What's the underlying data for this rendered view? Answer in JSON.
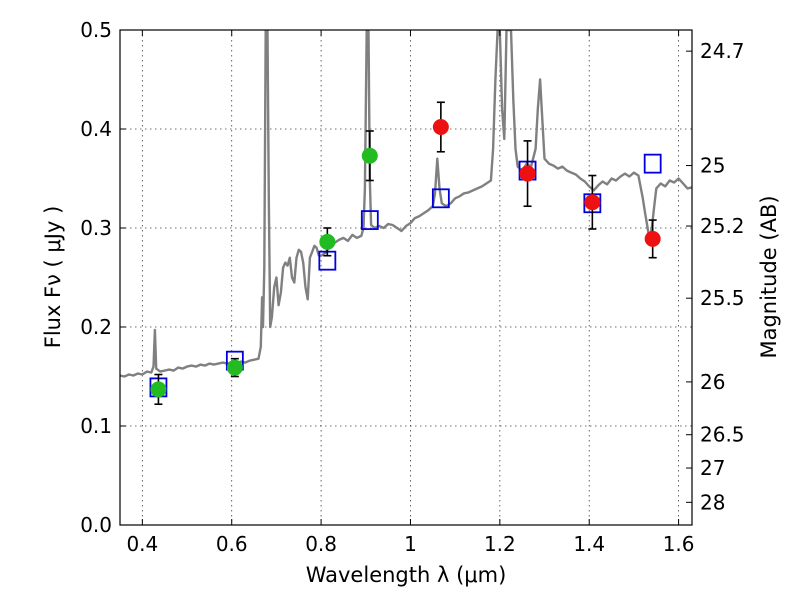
{
  "chart_data": {
    "type": "scatter",
    "xlabel": "Wavelength  λ (μm)",
    "ylabel": "Flux  Fν  ( μJy )",
    "y2label": "Magnitude (AB)",
    "xlim": [
      0.35,
      1.63
    ],
    "ylim": [
      0.0,
      0.5
    ],
    "grid": true,
    "x_ticks": [
      {
        "value": 0.4,
        "label": "0.4"
      },
      {
        "value": 0.6,
        "label": "0.6"
      },
      {
        "value": 0.8,
        "label": "0.8"
      },
      {
        "value": 1.0,
        "label": "1"
      },
      {
        "value": 1.2,
        "label": "1.2"
      },
      {
        "value": 1.4,
        "label": "1.4"
      },
      {
        "value": 1.6,
        "label": "1.6"
      }
    ],
    "y_ticks": [
      {
        "value": 0.0,
        "label": "0.0"
      },
      {
        "value": 0.1,
        "label": "0.1"
      },
      {
        "value": 0.2,
        "label": "0.2"
      },
      {
        "value": 0.3,
        "label": "0.3"
      },
      {
        "value": 0.4,
        "label": "0.4"
      },
      {
        "value": 0.5,
        "label": "0.5"
      }
    ],
    "y2_ticks": [
      {
        "value": 24.7,
        "label": "24.7"
      },
      {
        "value": 25.0,
        "label": "25"
      },
      {
        "value": 25.2,
        "label": "25.2"
      },
      {
        "value": 25.5,
        "label": "25.5"
      },
      {
        "value": 26.0,
        "label": "26"
      },
      {
        "value": 26.5,
        "label": "26.5"
      },
      {
        "value": 27.0,
        "label": "27"
      },
      {
        "value": 28.0,
        "label": "28"
      }
    ],
    "colors": {
      "spectrum": "#808080",
      "optical_points": "#22bb22",
      "nir_points": "#ee1111",
      "model_squares": "#0000dd",
      "error_bars": "#000000"
    },
    "series": [
      {
        "kind": "line",
        "points": [
          [
            0.35,
            0.151
          ],
          [
            0.36,
            0.15
          ],
          [
            0.37,
            0.152
          ],
          [
            0.38,
            0.151
          ],
          [
            0.39,
            0.153
          ],
          [
            0.4,
            0.152
          ],
          [
            0.41,
            0.155
          ],
          [
            0.42,
            0.154
          ],
          [
            0.425,
            0.16
          ],
          [
            0.428,
            0.197
          ],
          [
            0.431,
            0.158
          ],
          [
            0.44,
            0.155
          ],
          [
            0.45,
            0.156
          ],
          [
            0.46,
            0.157
          ],
          [
            0.47,
            0.156
          ],
          [
            0.48,
            0.159
          ],
          [
            0.49,
            0.158
          ],
          [
            0.5,
            0.16
          ],
          [
            0.51,
            0.161
          ],
          [
            0.52,
            0.16
          ],
          [
            0.53,
            0.162
          ],
          [
            0.54,
            0.161
          ],
          [
            0.55,
            0.163
          ],
          [
            0.56,
            0.162
          ],
          [
            0.57,
            0.163
          ],
          [
            0.58,
            0.164
          ],
          [
            0.59,
            0.163
          ],
          [
            0.6,
            0.164
          ],
          [
            0.61,
            0.163
          ],
          [
            0.62,
            0.165
          ],
          [
            0.63,
            0.164
          ],
          [
            0.64,
            0.166
          ],
          [
            0.65,
            0.167
          ],
          [
            0.66,
            0.168
          ],
          [
            0.665,
            0.18
          ],
          [
            0.668,
            0.23
          ],
          [
            0.67,
            0.2
          ],
          [
            0.673,
            0.26
          ],
          [
            0.676,
            0.5
          ],
          [
            0.68,
            0.5
          ],
          [
            0.683,
            0.33
          ],
          [
            0.686,
            0.2
          ],
          [
            0.69,
            0.21
          ],
          [
            0.695,
            0.24
          ],
          [
            0.7,
            0.25
          ],
          [
            0.705,
            0.222
          ],
          [
            0.71,
            0.235
          ],
          [
            0.715,
            0.26
          ],
          [
            0.72,
            0.265
          ],
          [
            0.725,
            0.262
          ],
          [
            0.73,
            0.27
          ],
          [
            0.735,
            0.25
          ],
          [
            0.74,
            0.245
          ],
          [
            0.745,
            0.27
          ],
          [
            0.75,
            0.278
          ],
          [
            0.755,
            0.276
          ],
          [
            0.76,
            0.265
          ],
          [
            0.765,
            0.24
          ],
          [
            0.77,
            0.228
          ],
          [
            0.775,
            0.27
          ],
          [
            0.78,
            0.276
          ],
          [
            0.785,
            0.282
          ],
          [
            0.79,
            0.28
          ],
          [
            0.795,
            0.272
          ],
          [
            0.8,
            0.272
          ],
          [
            0.81,
            0.275
          ],
          [
            0.82,
            0.283
          ],
          [
            0.83,
            0.285
          ],
          [
            0.84,
            0.288
          ],
          [
            0.85,
            0.29
          ],
          [
            0.86,
            0.287
          ],
          [
            0.87,
            0.293
          ],
          [
            0.88,
            0.29
          ],
          [
            0.89,
            0.292
          ],
          [
            0.895,
            0.3
          ],
          [
            0.898,
            0.34
          ],
          [
            0.902,
            0.5
          ],
          [
            0.906,
            0.5
          ],
          [
            0.909,
            0.35
          ],
          [
            0.912,
            0.303
          ],
          [
            0.92,
            0.3
          ],
          [
            0.93,
            0.302
          ],
          [
            0.94,
            0.3
          ],
          [
            0.95,
            0.304
          ],
          [
            0.96,
            0.303
          ],
          [
            0.97,
            0.3
          ],
          [
            0.98,
            0.297
          ],
          [
            0.99,
            0.302
          ],
          [
            1.0,
            0.305
          ],
          [
            1.01,
            0.31
          ],
          [
            1.02,
            0.312
          ],
          [
            1.03,
            0.315
          ],
          [
            1.04,
            0.318
          ],
          [
            1.05,
            0.322
          ],
          [
            1.055,
            0.335
          ],
          [
            1.06,
            0.37
          ],
          [
            1.065,
            0.34
          ],
          [
            1.07,
            0.325
          ],
          [
            1.08,
            0.322
          ],
          [
            1.09,
            0.325
          ],
          [
            1.1,
            0.33
          ],
          [
            1.11,
            0.332
          ],
          [
            1.12,
            0.335
          ],
          [
            1.13,
            0.336
          ],
          [
            1.14,
            0.338
          ],
          [
            1.15,
            0.34
          ],
          [
            1.16,
            0.342
          ],
          [
            1.17,
            0.345
          ],
          [
            1.18,
            0.348
          ],
          [
            1.185,
            0.38
          ],
          [
            1.19,
            0.45
          ],
          [
            1.195,
            0.5
          ],
          [
            1.2,
            0.5
          ],
          [
            1.205,
            0.42
          ],
          [
            1.21,
            0.39
          ],
          [
            1.215,
            0.5
          ],
          [
            1.225,
            0.5
          ],
          [
            1.23,
            0.43
          ],
          [
            1.235,
            0.38
          ],
          [
            1.24,
            0.362
          ],
          [
            1.25,
            0.358
          ],
          [
            1.26,
            0.365
          ],
          [
            1.27,
            0.362
          ],
          [
            1.28,
            0.38
          ],
          [
            1.285,
            0.42
          ],
          [
            1.29,
            0.45
          ],
          [
            1.295,
            0.41
          ],
          [
            1.3,
            0.37
          ],
          [
            1.31,
            0.365
          ],
          [
            1.32,
            0.363
          ],
          [
            1.33,
            0.36
          ],
          [
            1.34,
            0.362
          ],
          [
            1.35,
            0.358
          ],
          [
            1.36,
            0.356
          ],
          [
            1.37,
            0.354
          ],
          [
            1.38,
            0.35
          ],
          [
            1.39,
            0.347
          ],
          [
            1.4,
            0.342
          ],
          [
            1.41,
            0.338
          ],
          [
            1.42,
            0.343
          ],
          [
            1.43,
            0.347
          ],
          [
            1.44,
            0.344
          ],
          [
            1.45,
            0.35
          ],
          [
            1.46,
            0.348
          ],
          [
            1.47,
            0.352
          ],
          [
            1.48,
            0.355
          ],
          [
            1.49,
            0.352
          ],
          [
            1.5,
            0.356
          ],
          [
            1.51,
            0.353
          ],
          [
            1.52,
            0.33
          ],
          [
            1.525,
            0.315
          ],
          [
            1.53,
            0.302
          ],
          [
            1.535,
            0.288
          ],
          [
            1.54,
            0.3
          ],
          [
            1.545,
            0.32
          ],
          [
            1.55,
            0.34
          ],
          [
            1.56,
            0.345
          ],
          [
            1.57,
            0.342
          ],
          [
            1.58,
            0.348
          ],
          [
            1.59,
            0.346
          ],
          [
            1.6,
            0.35
          ],
          [
            1.61,
            0.345
          ],
          [
            1.62,
            0.34
          ],
          [
            1.63,
            0.341
          ]
        ]
      },
      {
        "kind": "squares",
        "points": [
          [
            0.436,
            0.139
          ],
          [
            0.607,
            0.166
          ],
          [
            0.814,
            0.267
          ],
          [
            0.909,
            0.308
          ],
          [
            1.068,
            0.33
          ],
          [
            1.262,
            0.358
          ],
          [
            1.407,
            0.325
          ],
          [
            1.542,
            0.365
          ]
        ]
      },
      {
        "kind": "points_with_errors",
        "color": "#22bb22",
        "points": [
          {
            "x": 0.436,
            "y": 0.137,
            "err": 0.015
          },
          {
            "x": 0.607,
            "y": 0.159,
            "err": 0.009
          },
          {
            "x": 0.814,
            "y": 0.286,
            "err": 0.014
          },
          {
            "x": 0.909,
            "y": 0.373,
            "err": 0.025
          }
        ]
      },
      {
        "kind": "points_with_errors",
        "color": "#ee1111",
        "points": [
          {
            "x": 1.068,
            "y": 0.402,
            "err": 0.025
          },
          {
            "x": 1.262,
            "y": 0.355,
            "err": 0.033
          },
          {
            "x": 1.407,
            "y": 0.326,
            "err": 0.027
          },
          {
            "x": 1.542,
            "y": 0.289,
            "err": 0.019
          }
        ]
      }
    ]
  }
}
